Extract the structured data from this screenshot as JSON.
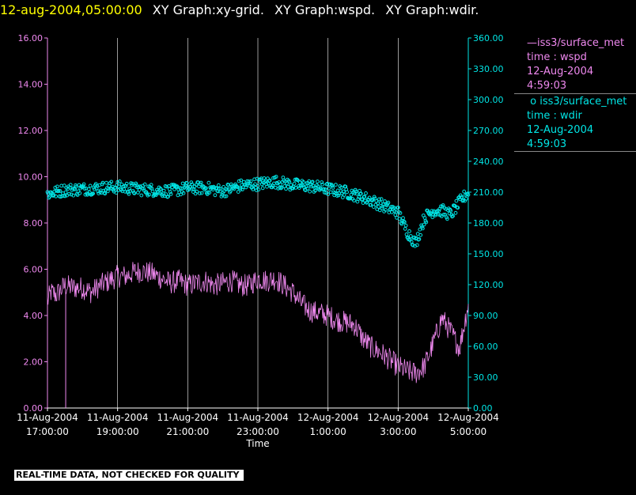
{
  "header": {
    "timestamp": "12-aug-2004,05:00:00",
    "graphs": [
      "XY Graph:xy-grid.",
      "XY Graph:wspd.",
      "XY Graph:wdir."
    ]
  },
  "legend": [
    {
      "source": "iss3/surface_met",
      "var": "time : wspd",
      "date": "12-Aug-2004",
      "time": "4:59:03",
      "symbol": "line",
      "color": "#ee88ee"
    },
    {
      "source": "iss3/surface_met",
      "var": "time : wdir",
      "date": "12-Aug-2004",
      "time": "4:59:03",
      "symbol": "circle",
      "color": "#00e5e5"
    }
  ],
  "notice": "REAL-TIME DATA, NOT CHECKED FOR QUALITY",
  "chart_data": {
    "type": "line",
    "xlabel": "Time",
    "x_ticks": [
      {
        "hours": 0,
        "l1": "11-Aug-2004",
        "l2": "17:00:00"
      },
      {
        "hours": 2,
        "l1": "11-Aug-2004",
        "l2": "19:00:00"
      },
      {
        "hours": 4,
        "l1": "11-Aug-2004",
        "l2": "21:00:00"
      },
      {
        "hours": 6,
        "l1": "11-Aug-2004",
        "l2": "23:00:00"
      },
      {
        "hours": 8,
        "l1": "12-Aug-2004",
        "l2": "1:00:00"
      },
      {
        "hours": 10,
        "l1": "12-Aug-2004",
        "l2": "3:00:00"
      },
      {
        "hours": 12,
        "l1": "12-Aug-2004",
        "l2": "5:00:00"
      }
    ],
    "xlim_hours": [
      0,
      12
    ],
    "left_axis": {
      "min": 0,
      "max": 16,
      "ticks": [
        "0.00",
        "2.00",
        "4.00",
        "6.00",
        "8.00",
        "10.00",
        "12.00",
        "14.00",
        "16.00"
      ],
      "color": "#ee88ee"
    },
    "right_axis": {
      "min": 0,
      "max": 360,
      "ticks": [
        "0.00",
        "30.00",
        "60.00",
        "90.00",
        "120.00",
        "150.00",
        "180.00",
        "210.00",
        "240.00",
        "270.00",
        "300.00",
        "330.00",
        "360.00"
      ],
      "color": "#00e5e5"
    },
    "grid": "vertical",
    "series": [
      {
        "name": "time : wspd",
        "axis": "left",
        "style": "line",
        "color": "#ee88ee",
        "x": [
          0,
          0.1,
          0.25,
          0.5,
          0.75,
          1.0,
          1.25,
          1.5,
          1.75,
          2.0,
          2.25,
          2.5,
          2.75,
          3.0,
          3.25,
          3.5,
          3.75,
          4.0,
          4.25,
          4.5,
          4.75,
          5.0,
          5.25,
          5.5,
          5.75,
          6.0,
          6.25,
          6.5,
          6.75,
          7.0,
          7.25,
          7.5,
          7.75,
          8.0,
          8.25,
          8.5,
          8.75,
          9.0,
          9.25,
          9.5,
          9.75,
          10.0,
          10.25,
          10.5,
          10.75,
          11.0,
          11.25,
          11.5,
          11.75,
          12.0
        ],
        "y": [
          4.6,
          5.0,
          4.9,
          5.3,
          5.2,
          5.2,
          5.0,
          5.3,
          5.5,
          5.7,
          5.7,
          5.9,
          5.9,
          5.8,
          5.6,
          5.4,
          5.5,
          5.3,
          5.4,
          5.5,
          5.3,
          5.4,
          5.5,
          5.3,
          5.3,
          5.6,
          5.5,
          5.6,
          5.3,
          5.0,
          4.5,
          4.2,
          4.1,
          4.0,
          3.8,
          3.7,
          3.6,
          3.0,
          2.6,
          2.4,
          2.1,
          1.8,
          1.6,
          1.5,
          1.8,
          2.8,
          3.9,
          3.3,
          2.6,
          4.5
        ],
        "noise": 0.5
      },
      {
        "name": "time : wdir",
        "axis": "right",
        "style": "markers",
        "color": "#00e5e5",
        "x": [
          0,
          0.5,
          1.0,
          1.5,
          2.0,
          2.5,
          3.0,
          3.5,
          4.0,
          4.5,
          5.0,
          5.5,
          6.0,
          6.5,
          7.0,
          7.5,
          8.0,
          8.5,
          9.0,
          9.5,
          10.0,
          10.25,
          10.5,
          10.75,
          11.0,
          11.25,
          11.5,
          11.75,
          12.0
        ],
        "y": [
          208,
          212,
          213,
          214,
          215,
          213,
          212,
          211,
          214,
          214,
          211,
          216,
          218,
          220,
          217,
          216,
          213,
          210,
          205,
          198,
          190,
          172,
          160,
          185,
          192,
          192,
          188,
          200,
          210
        ],
        "noise": 6
      }
    ]
  }
}
